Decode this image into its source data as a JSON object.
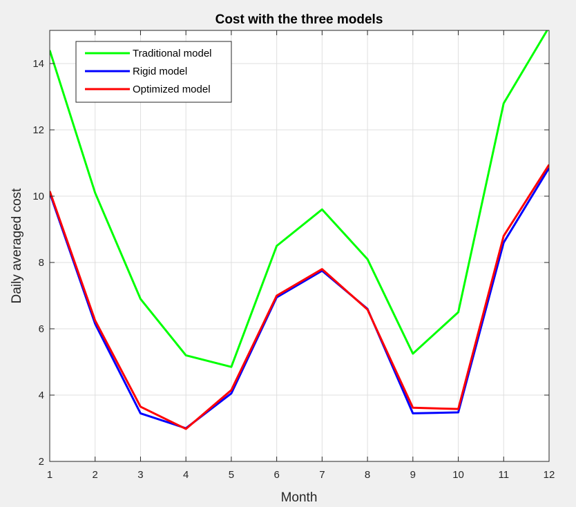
{
  "chart_data": {
    "type": "line",
    "title": "Cost with the three models",
    "xlabel": "Month",
    "ylabel": "Daily averaged cost",
    "xlim": [
      1,
      12
    ],
    "ylim": [
      2,
      15
    ],
    "xticks": [
      1,
      2,
      3,
      4,
      5,
      6,
      7,
      8,
      9,
      10,
      11,
      12
    ],
    "yticks": [
      2,
      4,
      6,
      8,
      10,
      12,
      14
    ],
    "grid": true,
    "legend_position": "top-left",
    "x": [
      1,
      2,
      3,
      4,
      5,
      6,
      7,
      8,
      9,
      10,
      11,
      12
    ],
    "series": [
      {
        "name": "Traditional model",
        "color": "#00ff00",
        "values": [
          14.4,
          10.1,
          6.9,
          5.2,
          4.85,
          8.5,
          9.6,
          8.1,
          5.25,
          6.5,
          12.8,
          15.1
        ]
      },
      {
        "name": "Rigid model",
        "color": "#0000ff",
        "values": [
          10.1,
          6.15,
          3.45,
          3.0,
          4.05,
          6.95,
          7.75,
          6.6,
          3.45,
          3.48,
          8.6,
          10.85
        ]
      },
      {
        "name": "Optimized model",
        "color": "#ff0000",
        "values": [
          10.15,
          6.25,
          3.65,
          2.98,
          4.15,
          7.0,
          7.8,
          6.58,
          3.62,
          3.58,
          8.8,
          10.95
        ]
      }
    ]
  }
}
